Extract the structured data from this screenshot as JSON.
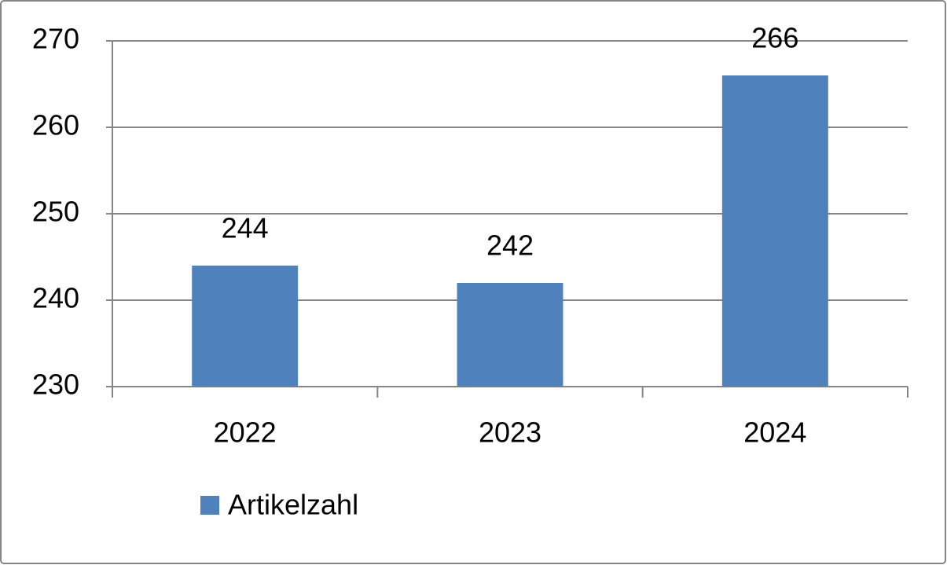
{
  "chart_data": {
    "type": "bar",
    "categories": [
      "2022",
      "2023",
      "2024"
    ],
    "series": [
      {
        "name": "Artikelzahl",
        "color": "#4f81bd",
        "values": [
          244,
          242,
          266
        ]
      }
    ],
    "ylim": [
      230,
      270
    ],
    "yticks": [
      230,
      240,
      250,
      260,
      270
    ],
    "grid": true,
    "legend": "bottom",
    "data_labels": true
  }
}
